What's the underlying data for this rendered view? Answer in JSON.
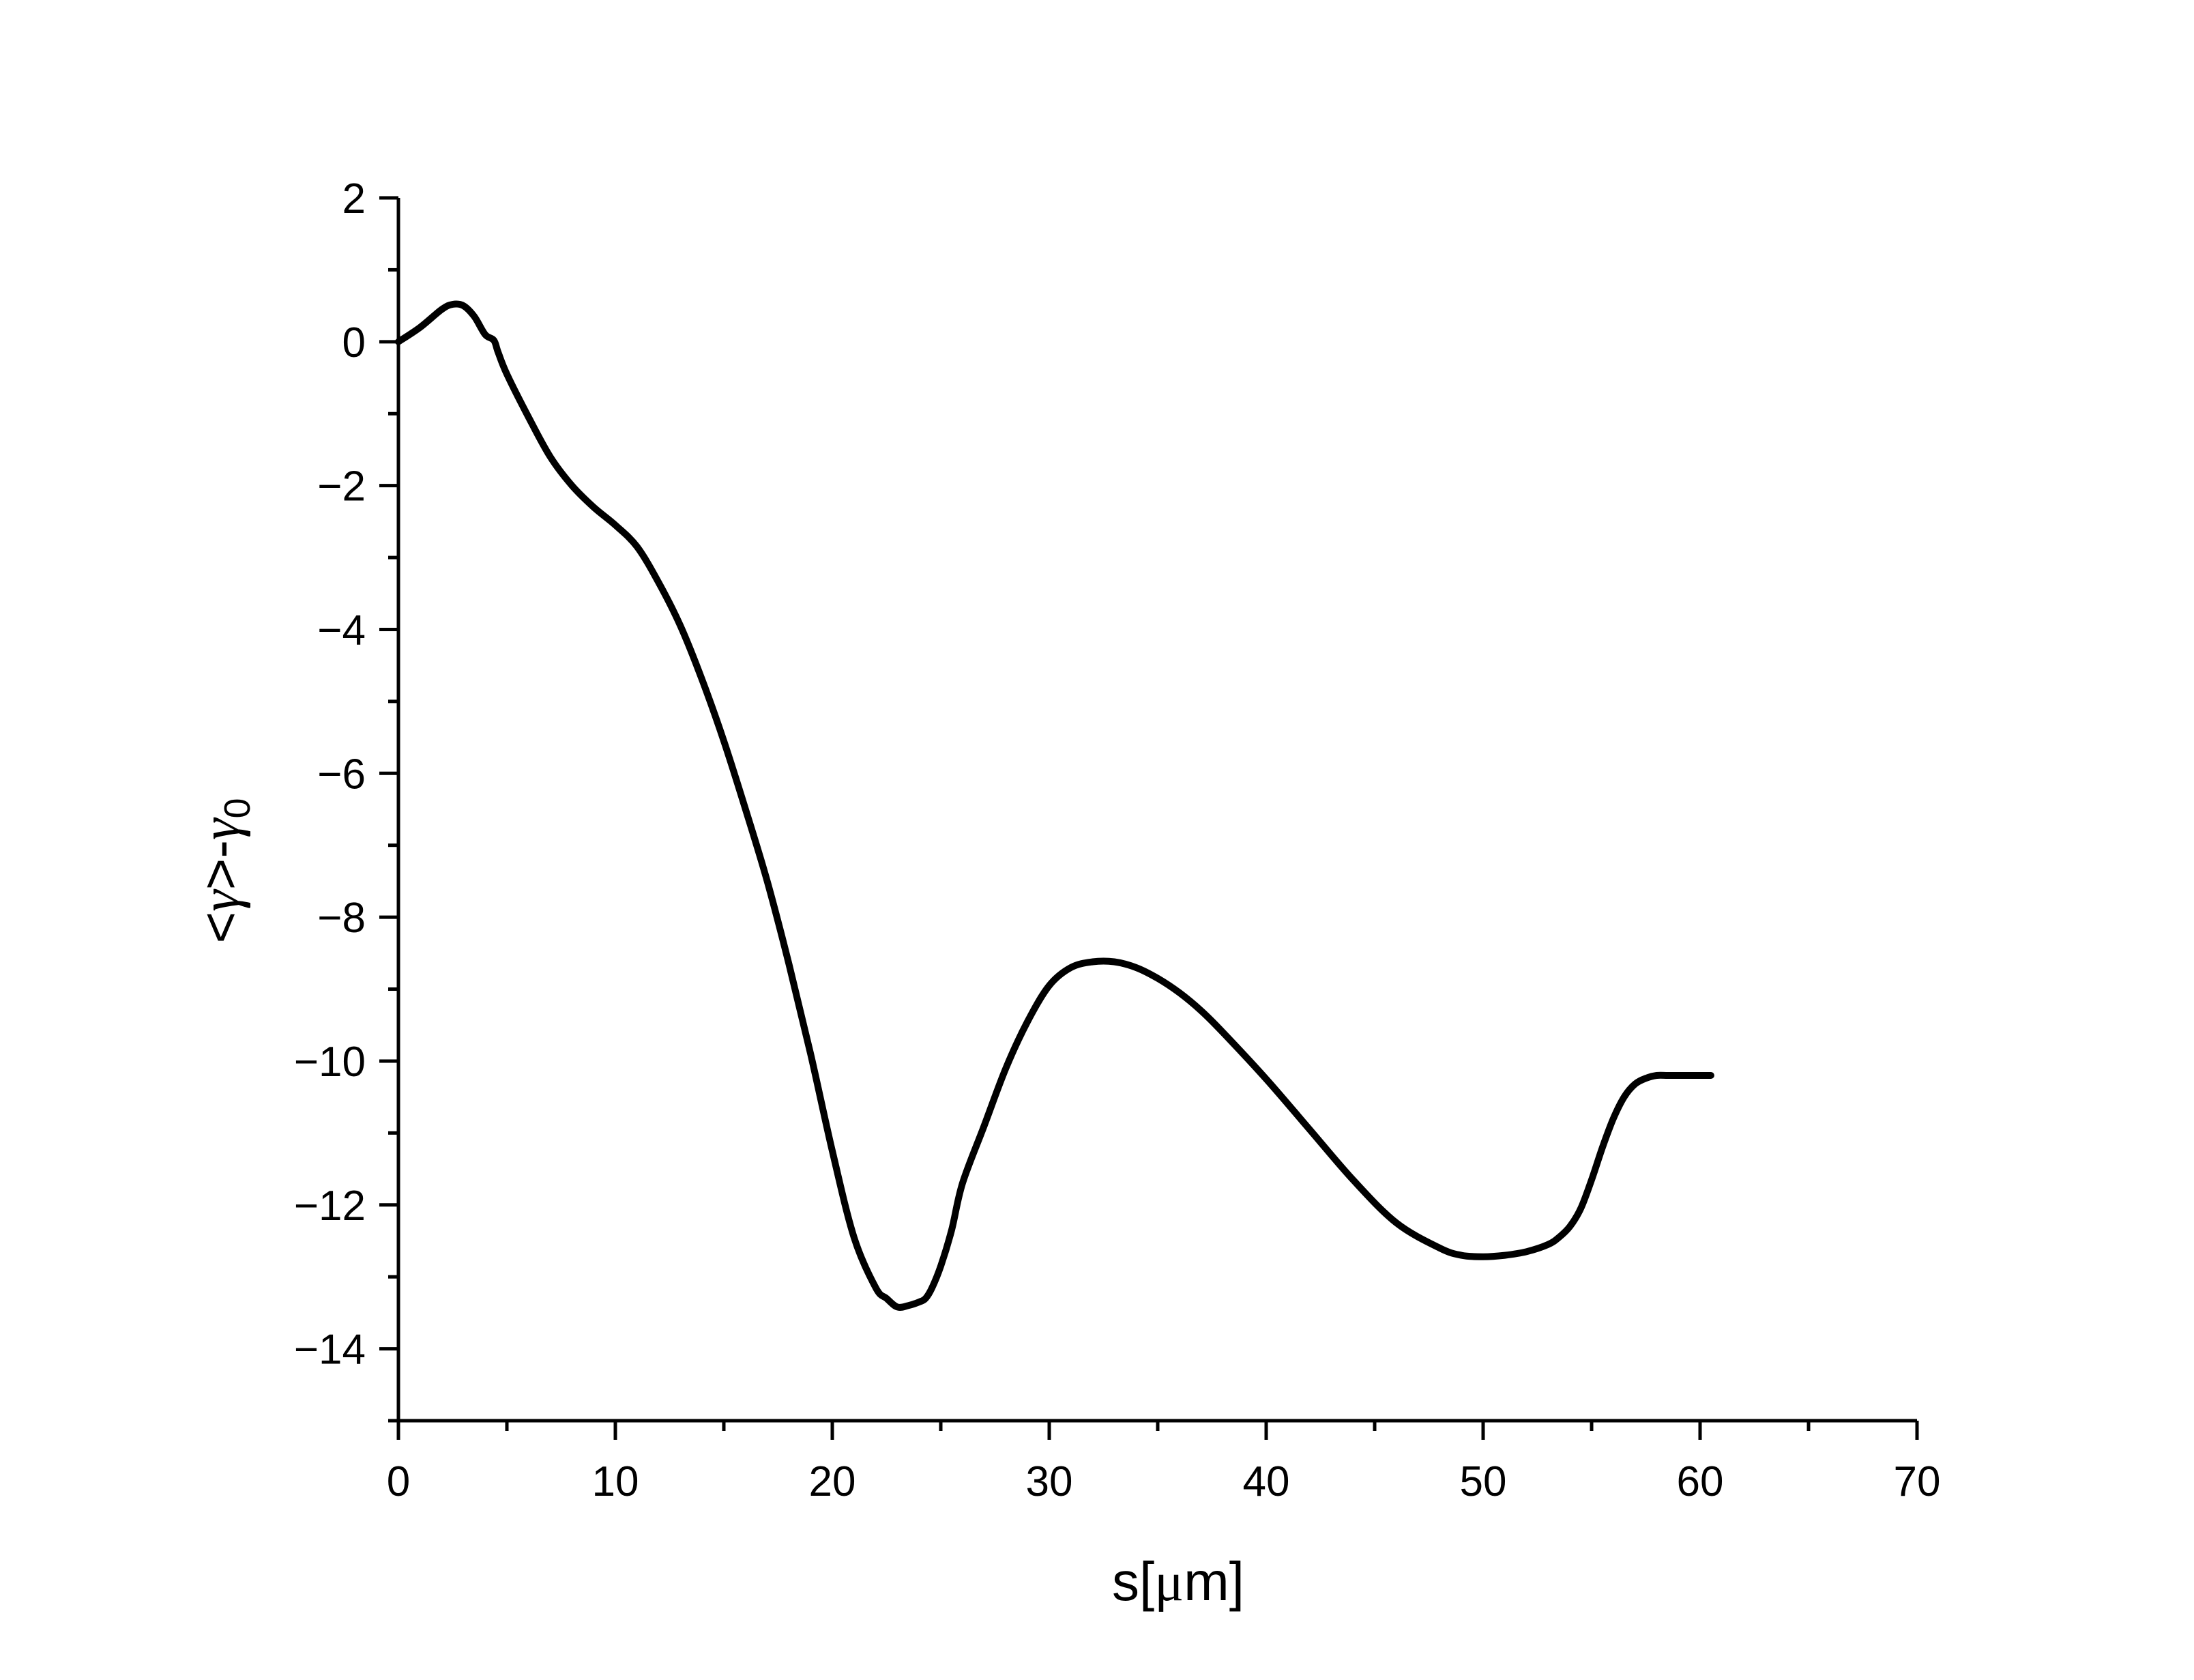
{
  "chart_data": {
    "type": "line",
    "title": "",
    "xlabel": "s[μm]",
    "xlabel_parts": {
      "prefix": "s[",
      "unit": "μ",
      "suffix": "m]"
    },
    "ylabel": "<γ>-γ0",
    "ylabel_parts": {
      "open": "<",
      "gamma": "γ",
      "close": ">-",
      "gamma2": "γ",
      "sub": "0"
    },
    "xlim": [
      0,
      70
    ],
    "ylim": [
      -15,
      2
    ],
    "xticks": [
      0,
      10,
      20,
      30,
      40,
      50,
      60,
      70
    ],
    "yticks": [
      2,
      0,
      -2,
      -4,
      -6,
      -8,
      -10,
      -12,
      -14
    ],
    "xtick_labels": [
      "0",
      "10",
      "20",
      "30",
      "40",
      "50",
      "60",
      "70"
    ],
    "ytick_labels": [
      "2",
      "0",
      "−2",
      "−4",
      "−6",
      "−8",
      "−10",
      "−12",
      "−14"
    ],
    "grid": false,
    "legend": "none",
    "line_color": "#000000",
    "series": [
      {
        "x": [
          0,
          1,
          2,
          2.5,
          3,
          3.5,
          4,
          4.4,
          4.6,
          5,
          6,
          7,
          8,
          9,
          10,
          11,
          12,
          13,
          14,
          15,
          16,
          17,
          18,
          19,
          20,
          21,
          22,
          22.5,
          23,
          23.5,
          24,
          24.3,
          24.6,
          25,
          25.5,
          26,
          27,
          28,
          29,
          30,
          31,
          32,
          33,
          34,
          35,
          36,
          37,
          38,
          40,
          42,
          44,
          46,
          48,
          49,
          50,
          51,
          52,
          53,
          53.5,
          54,
          54.5,
          55,
          55.5,
          56,
          56.5,
          57,
          57.5,
          58,
          58.5,
          59,
          59.5,
          60,
          60.5
        ],
        "y": [
          0,
          0.2,
          0.45,
          0.52,
          0.5,
          0.35,
          0.1,
          0.02,
          -0.15,
          -0.45,
          -1.05,
          -1.6,
          -2.0,
          -2.3,
          -2.55,
          -2.85,
          -3.35,
          -3.95,
          -4.7,
          -5.55,
          -6.5,
          -7.5,
          -8.65,
          -9.9,
          -11.25,
          -12.45,
          -13.15,
          -13.3,
          -13.42,
          -13.4,
          -13.35,
          -13.3,
          -13.15,
          -12.85,
          -12.35,
          -11.7,
          -10.9,
          -10.1,
          -9.45,
          -8.95,
          -8.7,
          -8.62,
          -8.62,
          -8.7,
          -8.85,
          -9.05,
          -9.3,
          -9.6,
          -10.25,
          -10.95,
          -11.65,
          -12.25,
          -12.6,
          -12.7,
          -12.72,
          -12.7,
          -12.65,
          -12.55,
          -12.45,
          -12.3,
          -12.05,
          -11.65,
          -11.2,
          -10.8,
          -10.5,
          -10.32,
          -10.24,
          -10.2,
          -10.2,
          -10.2,
          -10.2,
          -10.2,
          -10.2
        ]
      }
    ]
  }
}
